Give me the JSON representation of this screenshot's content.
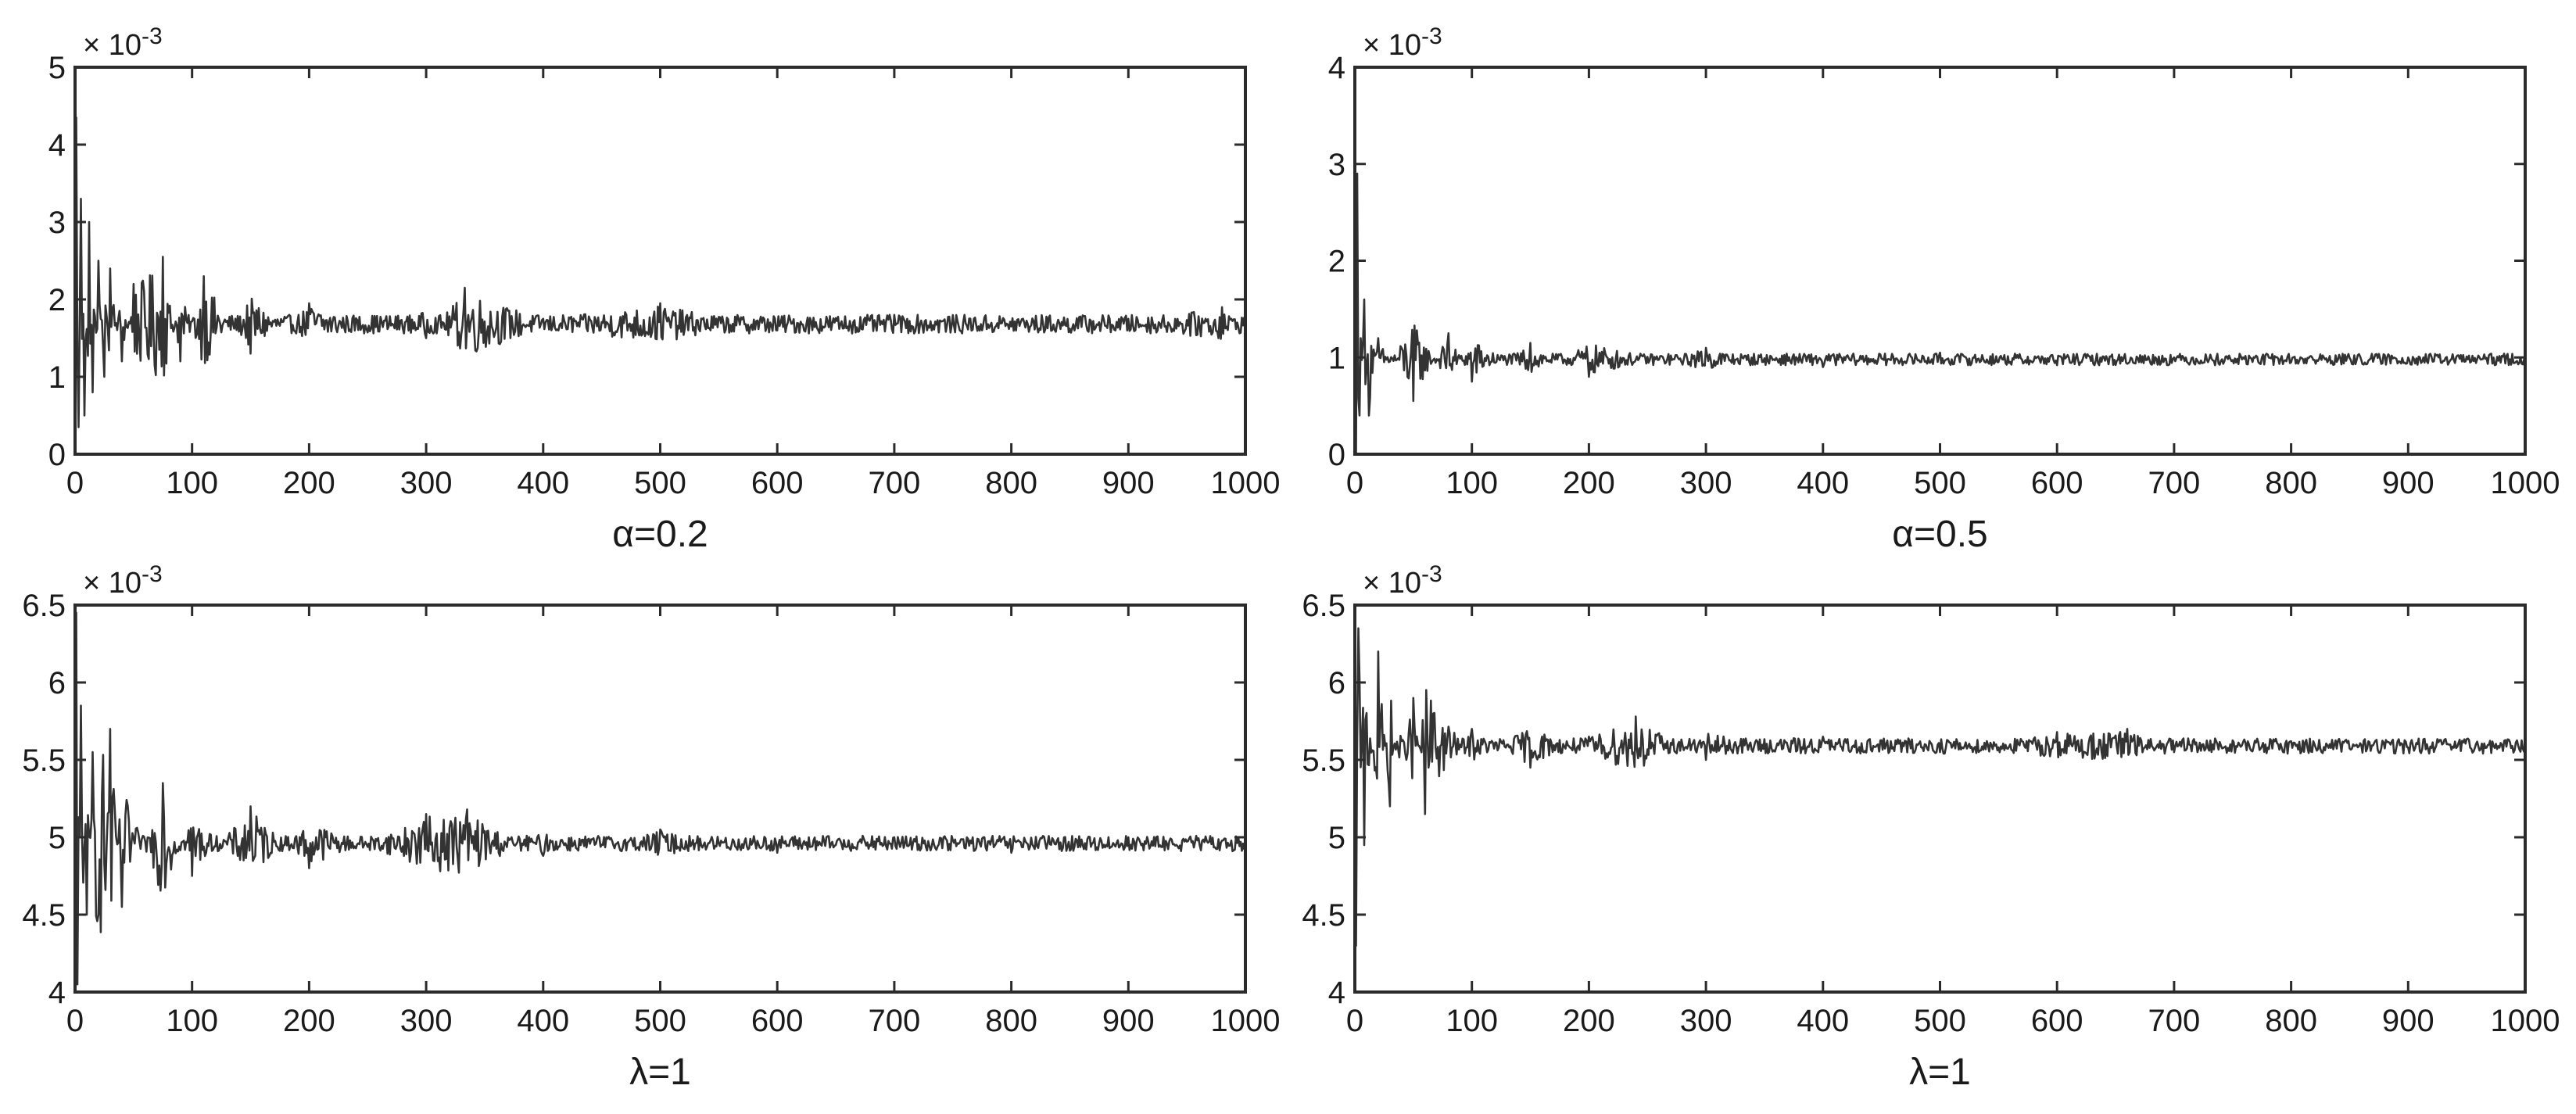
{
  "chart_data": [
    {
      "type": "line",
      "subplot": "top-left",
      "xlabel": "α=0.2",
      "ylabel": "",
      "exponent_label": "× 10-3",
      "scale_factor_exponent": -3,
      "xlim": [
        0,
        1000
      ],
      "ylim": [
        0,
        5
      ],
      "x_ticks": [
        0,
        100,
        200,
        300,
        400,
        500,
        600,
        700,
        800,
        900,
        1000
      ],
      "y_ticks": [
        0,
        1,
        2,
        3,
        4,
        5
      ],
      "x_tick_labels": [
        "0",
        "100",
        "200",
        "300",
        "400",
        "500",
        "600",
        "700",
        "800",
        "900",
        "1000"
      ],
      "y_tick_labels": [
        "0",
        "1",
        "2",
        "3",
        "4",
        "5"
      ],
      "grid": false,
      "series": [
        {
          "style": "noisy-convergence",
          "steady_value": 1.68,
          "n_points": 1000,
          "initial_envelope": [
            [
              0,
              4.35
            ],
            [
              0,
              0.3
            ]
          ],
          "sample_points": [
            [
              1,
              4.35
            ],
            [
              3,
              0.35
            ],
            [
              5,
              3.3
            ],
            [
              8,
              0.5
            ],
            [
              12,
              3.0
            ],
            [
              15,
              0.8
            ],
            [
              20,
              2.5
            ],
            [
              25,
              1.0
            ],
            [
              30,
              2.4
            ],
            [
              40,
              1.2
            ],
            [
              50,
              2.2
            ],
            [
              75,
              2.55
            ],
            [
              90,
              1.2
            ],
            [
              110,
              2.3
            ],
            [
              150,
              1.3
            ],
            [
              200,
              1.95
            ],
            [
              300,
              1.5
            ],
            [
              333,
              2.15
            ],
            [
              400,
              1.75
            ],
            [
              500,
              1.95
            ],
            [
              600,
              1.6
            ],
            [
              700,
              1.8
            ],
            [
              800,
              1.65
            ],
            [
              900,
              1.75
            ],
            [
              980,
              1.9
            ],
            [
              1000,
              1.65
            ]
          ],
          "final_noise_amplitude": 0.12
        }
      ]
    },
    {
      "type": "line",
      "subplot": "top-right",
      "xlabel": "α=0.5",
      "ylabel": "",
      "exponent_label": "× 10-3",
      "scale_factor_exponent": -3,
      "xlim": [
        0,
        1000
      ],
      "ylim": [
        0,
        4
      ],
      "x_ticks": [
        0,
        100,
        200,
        300,
        400,
        500,
        600,
        700,
        800,
        900,
        1000
      ],
      "y_ticks": [
        0,
        1,
        2,
        3,
        4
      ],
      "x_tick_labels": [
        "0",
        "100",
        "200",
        "300",
        "400",
        "500",
        "600",
        "700",
        "800",
        "900",
        "1000"
      ],
      "y_tick_labels": [
        "0",
        "1",
        "2",
        "3",
        "4"
      ],
      "grid": false,
      "series": [
        {
          "style": "noisy-convergence",
          "steady_value": 0.98,
          "n_points": 1000,
          "initial_envelope": [
            [
              0,
              2.9
            ],
            [
              0,
              0.35
            ]
          ],
          "sample_points": [
            [
              2,
              2.9
            ],
            [
              4,
              0.4
            ],
            [
              8,
              1.6
            ],
            [
              12,
              0.4
            ],
            [
              20,
              1.2
            ],
            [
              50,
              0.55
            ],
            [
              80,
              1.25
            ],
            [
              100,
              0.75
            ],
            [
              150,
              1.15
            ],
            [
              200,
              0.8
            ],
            [
              300,
              1.1
            ],
            [
              400,
              0.9
            ],
            [
              500,
              1.05
            ],
            [
              600,
              0.92
            ],
            [
              700,
              1.0
            ],
            [
              800,
              0.95
            ],
            [
              900,
              1.0
            ],
            [
              1000,
              0.98
            ]
          ],
          "final_noise_amplitude": 0.06
        }
      ]
    },
    {
      "type": "line",
      "subplot": "bottom-left",
      "xlabel": "λ=1",
      "ylabel": "",
      "exponent_label": "× 10-3",
      "scale_factor_exponent": -3,
      "xlim": [
        0,
        1000
      ],
      "ylim": [
        4,
        6.5
      ],
      "x_ticks": [
        0,
        100,
        200,
        300,
        400,
        500,
        600,
        700,
        800,
        900,
        1000
      ],
      "y_ticks": [
        4,
        4.5,
        5,
        5.5,
        6,
        6.5
      ],
      "x_tick_labels": [
        "0",
        "100",
        "200",
        "300",
        "400",
        "500",
        "600",
        "700",
        "800",
        "900",
        "1000"
      ],
      "y_tick_labels": [
        "4",
        "4.5",
        "5",
        "5.5",
        "6",
        "6.5"
      ],
      "grid": false,
      "series": [
        {
          "style": "noisy-convergence",
          "steady_value": 4.96,
          "n_points": 1000,
          "initial_envelope": [
            [
              0,
              6.45
            ],
            [
              0,
              4.05
            ]
          ],
          "sample_points": [
            [
              1,
              6.45
            ],
            [
              2,
              4.05
            ],
            [
              5,
              5.85
            ],
            [
              10,
              4.5
            ],
            [
              15,
              5.55
            ],
            [
              30,
              5.7
            ],
            [
              40,
              4.55
            ],
            [
              75,
              5.35
            ],
            [
              100,
              4.75
            ],
            [
              150,
              5.2
            ],
            [
              200,
              4.8
            ],
            [
              300,
              5.15
            ],
            [
              335,
              5.18
            ],
            [
              400,
              4.88
            ],
            [
              500,
              5.05
            ],
            [
              600,
              4.9
            ],
            [
              700,
              5.0
            ],
            [
              800,
              4.9
            ],
            [
              900,
              5.0
            ],
            [
              1000,
              4.97
            ]
          ],
          "final_noise_amplitude": 0.05
        }
      ]
    },
    {
      "type": "line",
      "subplot": "bottom-right",
      "xlabel": "λ=1",
      "ylabel": "",
      "exponent_label": "× 10-3",
      "scale_factor_exponent": -3,
      "xlim": [
        0,
        1000
      ],
      "ylim": [
        4,
        6.5
      ],
      "x_ticks": [
        0,
        100,
        200,
        300,
        400,
        500,
        600,
        700,
        800,
        900,
        1000
      ],
      "y_ticks": [
        4,
        4.5,
        5,
        5.5,
        6,
        6.5
      ],
      "x_tick_labels": [
        "0",
        "100",
        "200",
        "300",
        "400",
        "500",
        "600",
        "700",
        "800",
        "900",
        "1000"
      ],
      "y_tick_labels": [
        "4",
        "4.5",
        "5",
        "5.5",
        "6",
        "6.5"
      ],
      "grid": false,
      "series": [
        {
          "style": "noisy-convergence",
          "steady_value": 5.59,
          "n_points": 1000,
          "initial_envelope": [
            [
              0,
              4.3
            ],
            [
              0,
              6.35
            ]
          ],
          "sample_points": [
            [
              1,
              4.3
            ],
            [
              3,
              6.35
            ],
            [
              8,
              4.95
            ],
            [
              20,
              6.2
            ],
            [
              30,
              5.2
            ],
            [
              50,
              5.9
            ],
            [
              60,
              5.15
            ],
            [
              100,
              5.7
            ],
            [
              150,
              5.45
            ],
            [
              200,
              5.65
            ],
            [
              240,
              5.78
            ],
            [
              300,
              5.5
            ],
            [
              400,
              5.65
            ],
            [
              500,
              5.55
            ],
            [
              600,
              5.68
            ],
            [
              660,
              5.7
            ],
            [
              700,
              5.55
            ],
            [
              800,
              5.62
            ],
            [
              900,
              5.58
            ],
            [
              1000,
              5.6
            ]
          ],
          "final_noise_amplitude": 0.05
        }
      ]
    }
  ]
}
